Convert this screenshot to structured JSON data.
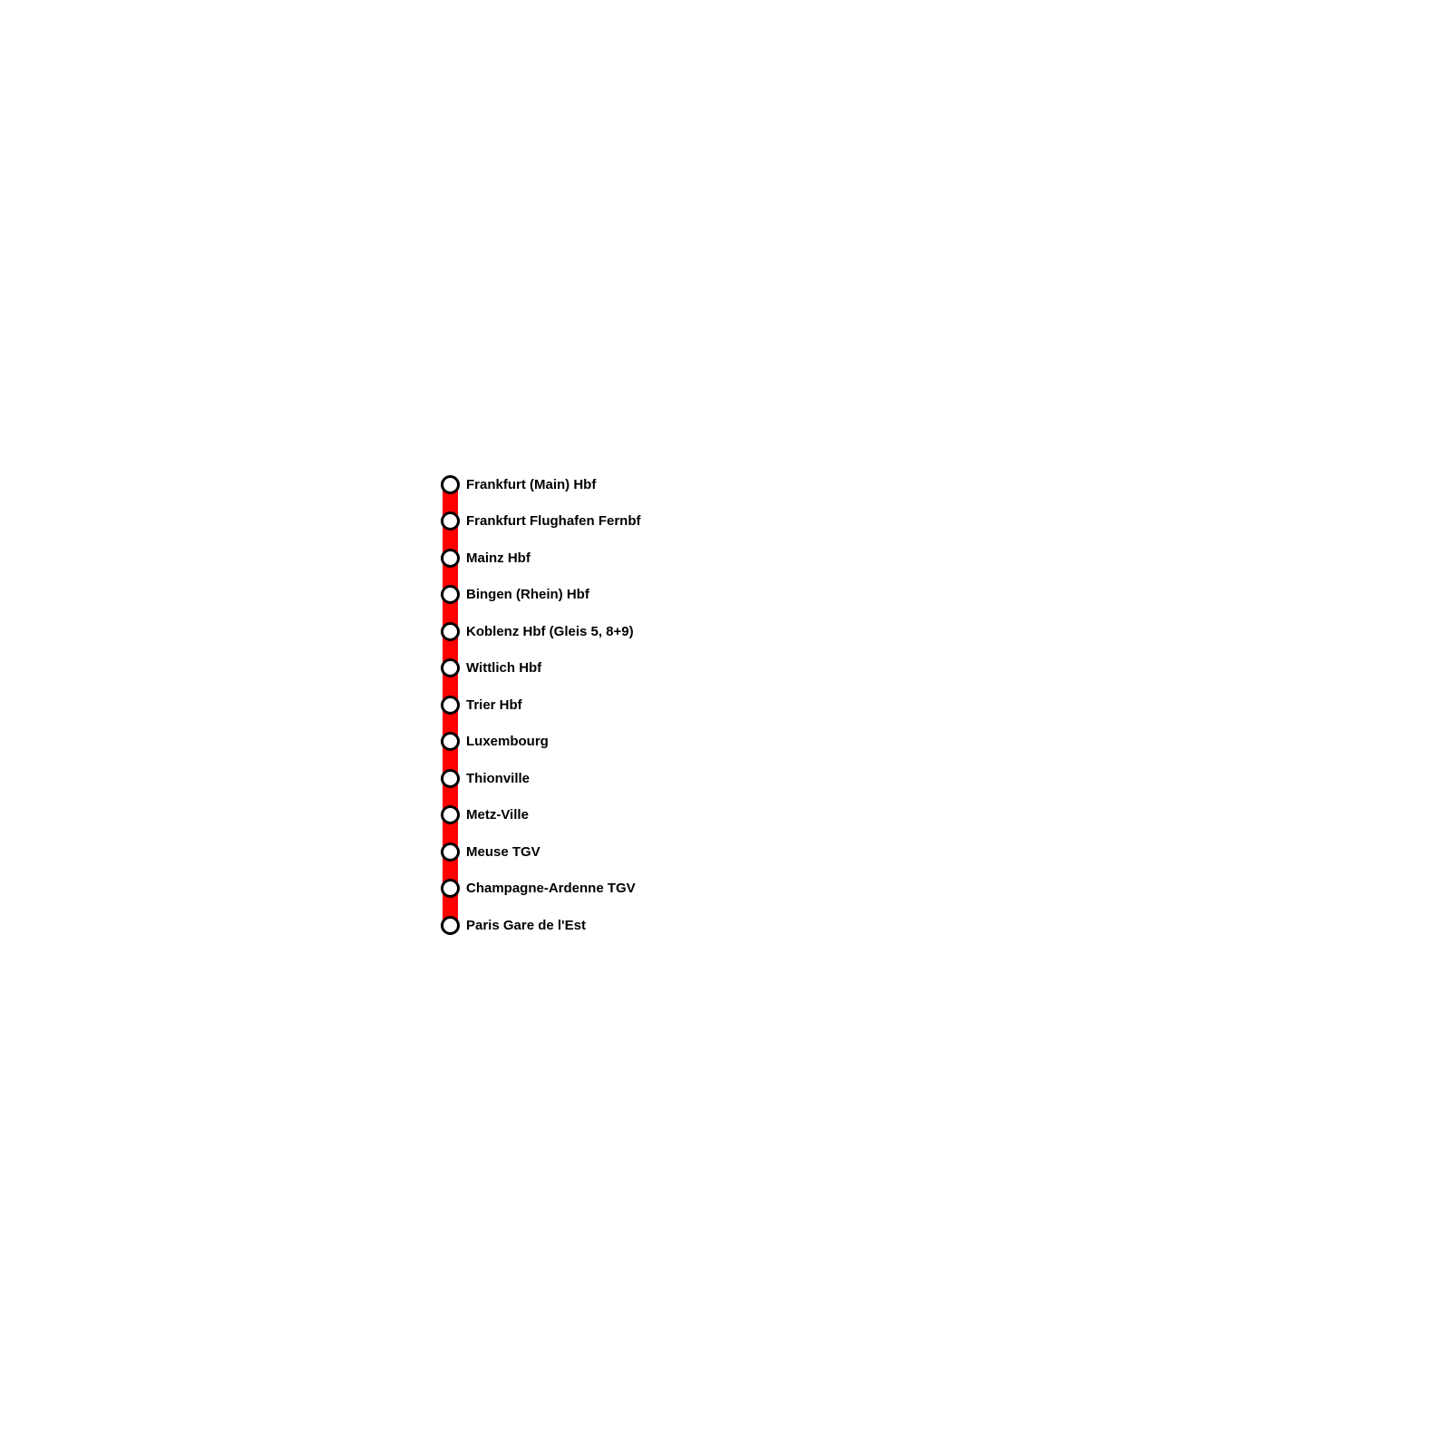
{
  "route": {
    "line_color": "#ff0000",
    "stations": [
      {
        "name": "Frankfurt (Main) Hbf"
      },
      {
        "name": "Frankfurt Flughafen Fernbf"
      },
      {
        "name": "Mainz Hbf"
      },
      {
        "name": "Bingen (Rhein) Hbf"
      },
      {
        "name": "Koblenz Hbf (Gleis 5, 8+9)"
      },
      {
        "name": "Wittlich Hbf"
      },
      {
        "name": "Trier Hbf"
      },
      {
        "name": "Luxembourg"
      },
      {
        "name": "Thionville"
      },
      {
        "name": "Metz-Ville"
      },
      {
        "name": "Meuse TGV"
      },
      {
        "name": "Champagne-Ardenne TGV"
      },
      {
        "name": "Paris Gare de l'Est"
      }
    ]
  }
}
